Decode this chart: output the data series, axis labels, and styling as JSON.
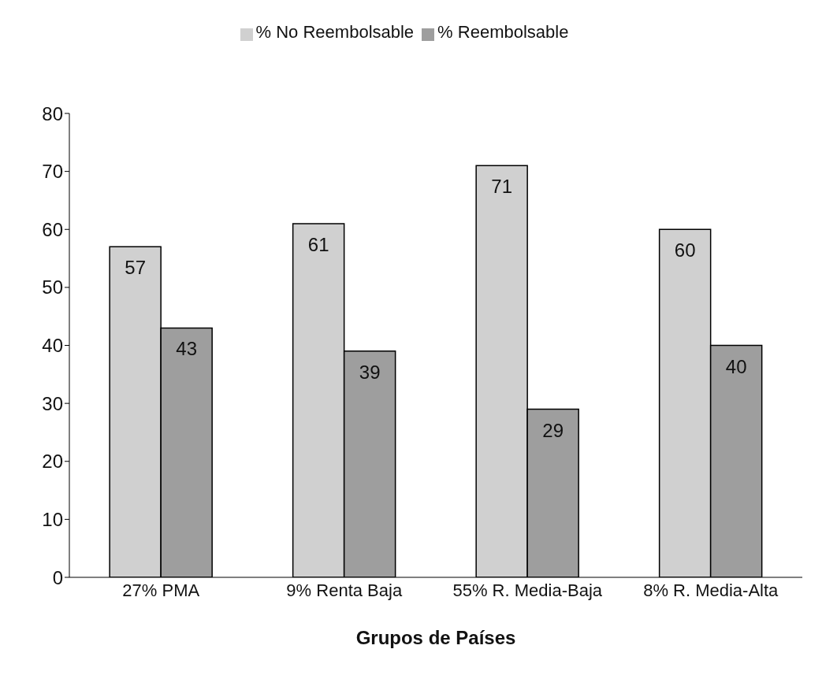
{
  "chart_data": {
    "type": "bar",
    "xlabel": "Grupos de Países",
    "categories": [
      "27% PMA",
      "9% Renta Baja",
      "55% R. Media-Baja",
      "8% R. Media-Alta"
    ],
    "series": [
      {
        "name": "% No Reembolsable",
        "color": "#d0d0d0",
        "values": [
          57,
          61,
          71,
          60
        ]
      },
      {
        "name": "% Reembolsable",
        "color": "#9e9e9e",
        "values": [
          43,
          39,
          29,
          40
        ]
      }
    ],
    "ylim": [
      0,
      80
    ],
    "yticks": [
      0,
      10,
      20,
      30,
      40,
      50,
      60,
      70,
      80
    ],
    "data_labels": true,
    "legend": "top",
    "grid": false
  }
}
